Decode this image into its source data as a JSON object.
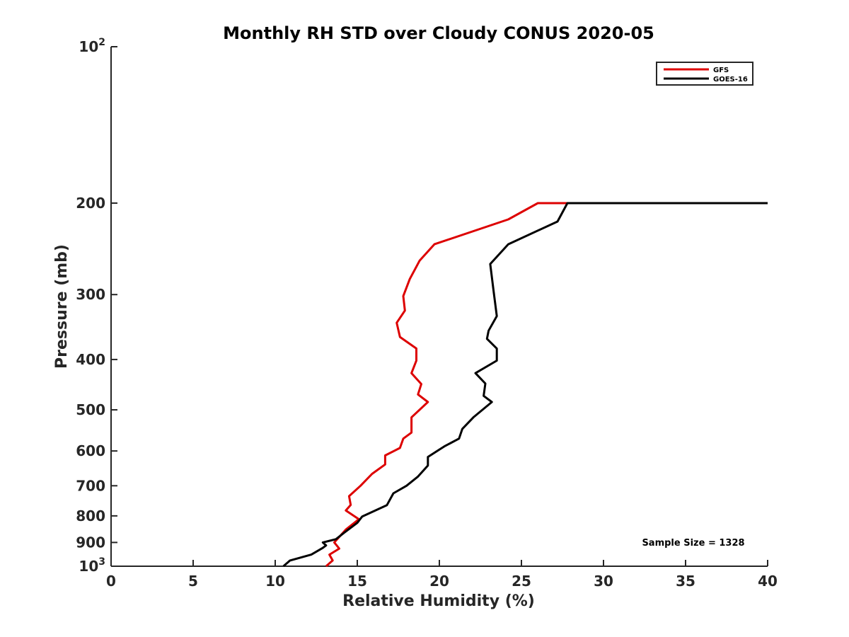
{
  "chart_data": {
    "type": "line",
    "title": "Monthly RH STD over Cloudy CONUS  2020-05",
    "xlabel": "Relative Humidity (%)",
    "ylabel": "Pressure (mb)",
    "xlim": [
      0,
      40
    ],
    "ylim": [
      100,
      1000
    ],
    "y_scale": "log",
    "y_reversed": true,
    "x_ticks": [
      0,
      5,
      10,
      15,
      20,
      25,
      30,
      35,
      40
    ],
    "y_ticks": [
      {
        "value": 100,
        "base": "10",
        "exp": "2"
      },
      {
        "value": 200,
        "label": "200"
      },
      {
        "value": 300,
        "label": "300"
      },
      {
        "value": 400,
        "label": "400"
      },
      {
        "value": 500,
        "label": "500"
      },
      {
        "value": 600,
        "label": "600"
      },
      {
        "value": 700,
        "label": "700"
      },
      {
        "value": 800,
        "label": "800"
      },
      {
        "value": 900,
        "label": "900"
      },
      {
        "value": 1000,
        "base": "10",
        "exp": "3"
      }
    ],
    "grid": false,
    "legend": "top-right",
    "annotation": "Sample Size = 1328",
    "series": [
      {
        "name": "GFS",
        "color": "#dd0000",
        "points": [
          [
            13.1,
            1000
          ],
          [
            13.5,
            975
          ],
          [
            13.3,
            950
          ],
          [
            13.9,
            925
          ],
          [
            13.6,
            900
          ],
          [
            14.3,
            850
          ],
          [
            15.1,
            812
          ],
          [
            14.3,
            781
          ],
          [
            14.6,
            762
          ],
          [
            14.5,
            733
          ],
          [
            15.2,
            700
          ],
          [
            15.9,
            664
          ],
          [
            16.7,
            637
          ],
          [
            16.7,
            612
          ],
          [
            17.6,
            592
          ],
          [
            17.8,
            568
          ],
          [
            18.3,
            553
          ],
          [
            18.3,
            517
          ],
          [
            19.3,
            483
          ],
          [
            18.7,
            467
          ],
          [
            18.9,
            446
          ],
          [
            18.3,
            425
          ],
          [
            18.6,
            402
          ],
          [
            18.6,
            381
          ],
          [
            17.6,
            362
          ],
          [
            17.4,
            340
          ],
          [
            17.9,
            322
          ],
          [
            17.8,
            302
          ],
          [
            18.2,
            280
          ],
          [
            18.8,
            258
          ],
          [
            19.7,
            240
          ],
          [
            24.2,
            215
          ],
          [
            26.0,
            200
          ],
          [
            40.0,
            200
          ]
        ]
      },
      {
        "name": "GOES-16",
        "color": "#000000",
        "points": [
          [
            10.5,
            1000
          ],
          [
            10.9,
            975
          ],
          [
            12.2,
            950
          ],
          [
            12.9,
            922
          ],
          [
            13.1,
            912
          ],
          [
            12.9,
            900
          ],
          [
            13.7,
            887
          ],
          [
            14.2,
            862
          ],
          [
            15.0,
            825
          ],
          [
            15.3,
            802
          ],
          [
            16.8,
            763
          ],
          [
            17.2,
            724
          ],
          [
            18.0,
            700
          ],
          [
            18.7,
            672
          ],
          [
            19.3,
            640
          ],
          [
            19.3,
            616
          ],
          [
            20.3,
            588
          ],
          [
            21.2,
            568
          ],
          [
            21.4,
            544
          ],
          [
            22.1,
            516
          ],
          [
            23.2,
            483
          ],
          [
            22.7,
            470
          ],
          [
            22.8,
            445
          ],
          [
            22.2,
            425
          ],
          [
            23.5,
            402
          ],
          [
            23.5,
            381
          ],
          [
            22.9,
            365
          ],
          [
            23.0,
            352
          ],
          [
            23.5,
            330
          ],
          [
            23.3,
            295
          ],
          [
            23.1,
            262
          ],
          [
            24.2,
            240
          ],
          [
            27.2,
            217
          ],
          [
            27.8,
            200
          ],
          [
            40.0,
            200
          ]
        ]
      }
    ]
  }
}
